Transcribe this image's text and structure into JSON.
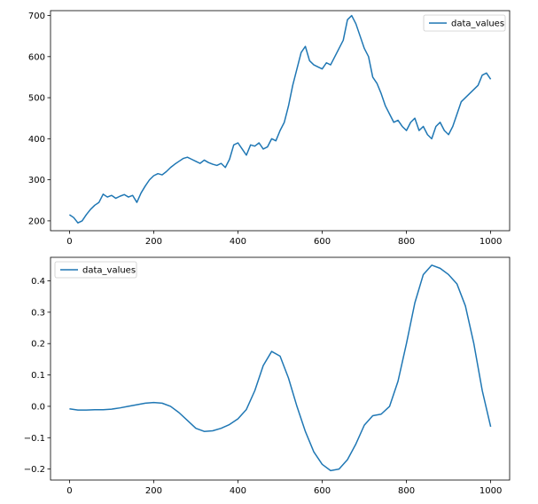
{
  "figure": {
    "background": "#ffffff",
    "series_color": "#1f77b4"
  },
  "chart_data": [
    {
      "type": "line",
      "title": "",
      "xlabel": "",
      "ylabel": "",
      "xlim": [
        -45,
        1045
      ],
      "ylim": [
        176,
        712
      ],
      "grid": false,
      "legend": {
        "placement": "top-right",
        "entries": [
          "data_values"
        ]
      },
      "xticks": [
        0,
        200,
        400,
        600,
        800,
        1000
      ],
      "xtick_labels": [
        "0",
        "200",
        "400",
        "600",
        "800",
        "1000"
      ],
      "yticks": [
        200,
        300,
        400,
        500,
        600,
        700
      ],
      "ytick_labels": [
        "200",
        "300",
        "400",
        "500",
        "600",
        "700"
      ],
      "series": [
        {
          "name": "data_values",
          "color": "#1f77b4",
          "x": [
            0,
            10,
            20,
            30,
            40,
            50,
            60,
            70,
            80,
            90,
            100,
            110,
            120,
            130,
            140,
            150,
            160,
            170,
            180,
            190,
            200,
            210,
            220,
            230,
            240,
            250,
            260,
            270,
            280,
            290,
            300,
            310,
            320,
            330,
            340,
            350,
            360,
            370,
            380,
            390,
            400,
            410,
            420,
            430,
            440,
            450,
            460,
            470,
            480,
            490,
            500,
            510,
            520,
            530,
            540,
            550,
            560,
            570,
            580,
            590,
            600,
            610,
            620,
            630,
            640,
            650,
            660,
            670,
            680,
            690,
            700,
            710,
            720,
            730,
            740,
            750,
            760,
            770,
            780,
            790,
            800,
            810,
            820,
            830,
            840,
            850,
            860,
            870,
            880,
            890,
            900,
            910,
            920,
            930,
            940,
            950,
            960,
            970,
            980,
            990,
            1000
          ],
          "y": [
            215,
            208,
            195,
            200,
            215,
            228,
            238,
            245,
            265,
            258,
            262,
            255,
            260,
            264,
            258,
            262,
            245,
            268,
            285,
            300,
            310,
            315,
            312,
            320,
            330,
            338,
            345,
            352,
            355,
            350,
            345,
            340,
            348,
            342,
            338,
            335,
            340,
            330,
            350,
            385,
            390,
            375,
            360,
            385,
            382,
            390,
            375,
            380,
            400,
            395,
            420,
            440,
            480,
            530,
            570,
            610,
            625,
            590,
            580,
            575,
            570,
            585,
            580,
            600,
            620,
            640,
            690,
            700,
            680,
            650,
            620,
            600,
            550,
            535,
            510,
            480,
            460,
            440,
            445,
            430,
            420,
            440,
            450,
            420,
            430,
            410,
            400,
            430,
            440,
            420,
            410,
            430,
            460,
            490,
            500,
            510,
            520,
            530,
            555,
            560,
            545
          ]
        }
      ]
    },
    {
      "type": "line",
      "title": "",
      "xlabel": "",
      "ylabel": "",
      "xlim": [
        -45,
        1045
      ],
      "ylim": [
        -0.235,
        0.475
      ],
      "grid": false,
      "legend": {
        "placement": "top-left",
        "entries": [
          "data_values"
        ]
      },
      "xticks": [
        0,
        200,
        400,
        600,
        800,
        1000
      ],
      "xtick_labels": [
        "0",
        "200",
        "400",
        "600",
        "800",
        "1000"
      ],
      "yticks": [
        -0.2,
        -0.1,
        0.0,
        0.1,
        0.2,
        0.3,
        0.4
      ],
      "ytick_labels": [
        "−0.2",
        "−0.1",
        "0.0",
        "0.1",
        "0.2",
        "0.3",
        "0.4"
      ],
      "series": [
        {
          "name": "data_values",
          "color": "#1f77b4",
          "x": [
            0,
            20,
            40,
            60,
            80,
            100,
            120,
            140,
            160,
            180,
            200,
            220,
            240,
            260,
            280,
            300,
            320,
            340,
            360,
            380,
            400,
            420,
            440,
            460,
            480,
            500,
            520,
            540,
            560,
            580,
            600,
            620,
            640,
            660,
            680,
            700,
            720,
            740,
            760,
            780,
            800,
            820,
            840,
            860,
            880,
            900,
            920,
            940,
            960,
            980,
            1000
          ],
          "y": [
            -0.008,
            -0.012,
            -0.012,
            -0.011,
            -0.011,
            -0.009,
            -0.005,
            0.0,
            0.005,
            0.01,
            0.012,
            0.01,
            0.0,
            -0.02,
            -0.045,
            -0.07,
            -0.08,
            -0.078,
            -0.07,
            -0.058,
            -0.04,
            -0.01,
            0.05,
            0.13,
            0.175,
            0.16,
            0.09,
            0.0,
            -0.08,
            -0.145,
            -0.185,
            -0.205,
            -0.2,
            -0.17,
            -0.12,
            -0.06,
            -0.03,
            -0.025,
            0.0,
            0.08,
            0.2,
            0.33,
            0.42,
            0.45,
            0.44,
            0.42,
            0.39,
            0.32,
            0.2,
            0.05,
            -0.065
          ]
        }
      ]
    }
  ]
}
